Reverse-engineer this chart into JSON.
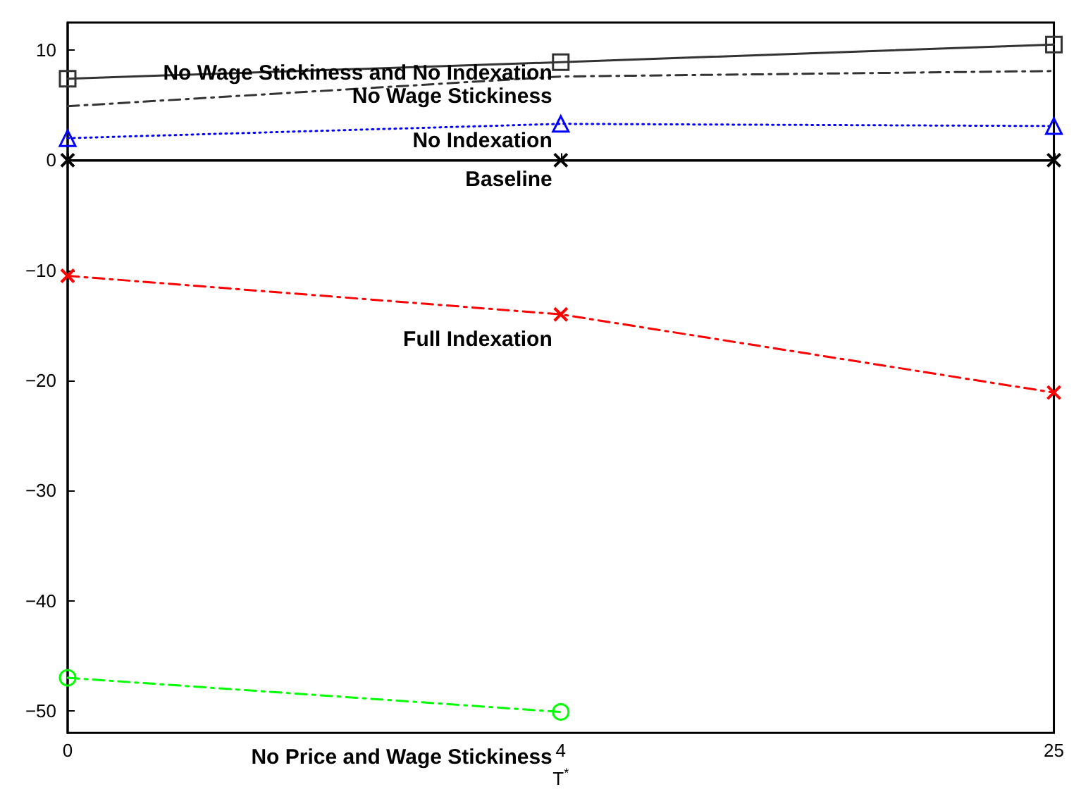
{
  "chart_data": {
    "type": "line",
    "xlabel": "T$^{*}$",
    "categories": [
      "0",
      "4",
      "25"
    ],
    "series": [
      {
        "name": "No Wage Stickiness and No Indexation",
        "color": "#333333",
        "marker": "square",
        "line_style": "solid",
        "values": [
          7.4,
          8.9,
          10.5
        ]
      },
      {
        "name": "No Wage Stickiness",
        "color": "#333333",
        "marker": "none",
        "line_style": "dashed",
        "values": [
          4.9,
          7.6,
          8.1
        ]
      },
      {
        "name": "No Indexation",
        "color": "#0000ff",
        "marker": "triangle",
        "line_style": "dotted",
        "values": [
          2.0,
          3.3,
          3.1
        ]
      },
      {
        "name": "Baseline",
        "color": "#000000",
        "marker": "cross",
        "line_style": "solid",
        "values": [
          0,
          0,
          0
        ]
      },
      {
        "name": "Full Indexation",
        "color": "#ff0000",
        "marker": "cross",
        "line_style": "dashed",
        "values": [
          -10.5,
          -14.0,
          -21.1
        ]
      },
      {
        "name": "No Price and Wage Stickiness",
        "color": "#00ff00",
        "marker": "circle",
        "line_style": "dashed",
        "values": [
          -47.0,
          -50.1,
          null
        ]
      }
    ],
    "ylim": [
      -52,
      12.5
    ],
    "yticks": [
      -50,
      -40,
      -30,
      -20,
      -10,
      0,
      10
    ],
    "grid": false
  }
}
